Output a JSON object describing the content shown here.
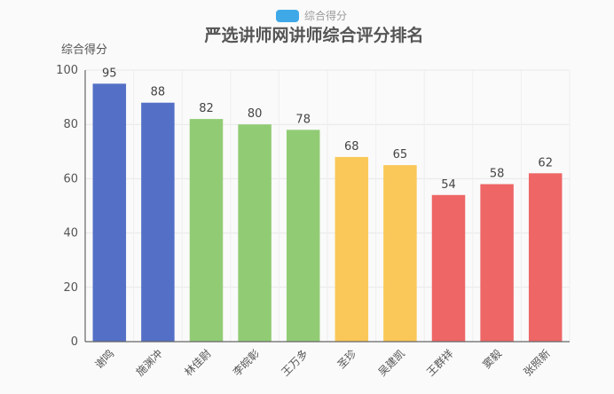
{
  "chart_data": {
    "type": "bar",
    "title": "严选讲师网讲师综合评分排名",
    "legend": {
      "label": "综合得分",
      "color": "#3fa9e8",
      "position": "top-center"
    },
    "ylabel": "综合得分",
    "xlabel": "",
    "ylim": [
      0,
      100
    ],
    "yticks": [
      0,
      20,
      40,
      60,
      80,
      100
    ],
    "grid": true,
    "categories": [
      "谢鸣",
      "施渊冲",
      "林佳尉",
      "李皖彰",
      "王万多",
      "圣珍",
      "吴建凯",
      "王群祥",
      "窦毅",
      "张照新"
    ],
    "values": [
      95,
      88,
      82,
      80,
      78,
      68,
      65,
      54,
      58,
      62
    ],
    "bar_colors": [
      "#5470c6",
      "#5470c6",
      "#91cc75",
      "#91cc75",
      "#91cc75",
      "#fac858",
      "#fac858",
      "#ee6666",
      "#ee6666",
      "#ee6666"
    ]
  }
}
